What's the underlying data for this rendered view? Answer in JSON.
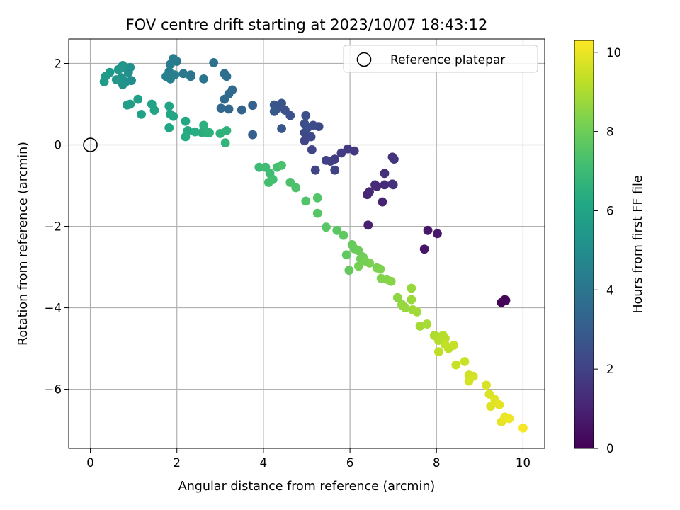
{
  "chart_data": {
    "type": "scatter",
    "title": "FOV centre drift starting at 2023/10/07 18:43:12",
    "xlabel": "Angular distance from reference (arcmin)",
    "ylabel": "Rotation from reference (arcmin)",
    "xlim": [
      -0.5,
      10.5
    ],
    "ylim": [
      -7.45,
      2.6
    ],
    "xticks": [
      0,
      2,
      4,
      6,
      8,
      10
    ],
    "yticks": [
      2,
      0,
      -2,
      -4,
      -6
    ],
    "grid": true,
    "legend": {
      "placement": "top-right",
      "entries": [
        "Reference platepar"
      ]
    },
    "reference_point": {
      "x": 0,
      "y": 0,
      "label": "Reference platepar"
    },
    "colorbar": {
      "label": "Hours from first FF file",
      "range": [
        0,
        10.3
      ],
      "ticks": [
        0,
        2,
        4,
        6,
        8,
        10
      ],
      "colormap": "viridis"
    },
    "points": [
      [
        9.5,
        -3.87,
        0.1
      ],
      [
        9.6,
        -3.82,
        0.2
      ],
      [
        9.58,
        -3.8,
        0.15
      ],
      [
        7.72,
        -2.56,
        0.6
      ],
      [
        7.8,
        -2.1,
        0.65
      ],
      [
        8.02,
        -2.18,
        0.7
      ],
      [
        6.42,
        -1.97,
        0.9
      ],
      [
        6.75,
        -1.4,
        1.0
      ],
      [
        6.4,
        -1.22,
        1.1
      ],
      [
        6.45,
        -1.15,
        1.15
      ],
      [
        6.62,
        -1.02,
        1.2
      ],
      [
        6.58,
        -0.98,
        1.25
      ],
      [
        6.8,
        -0.98,
        1.3
      ],
      [
        6.98,
        -0.96,
        1.35
      ],
      [
        6.8,
        -0.7,
        1.4
      ],
      [
        7.0,
        -0.98,
        1.45
      ],
      [
        6.98,
        -0.3,
        1.5
      ],
      [
        7.02,
        -0.35,
        1.55
      ],
      [
        6.1,
        -0.15,
        1.7
      ],
      [
        5.95,
        -0.1,
        1.75
      ],
      [
        5.8,
        -0.2,
        1.8
      ],
      [
        5.65,
        -0.35,
        1.85
      ],
      [
        5.55,
        -0.4,
        1.9
      ],
      [
        5.45,
        -0.38,
        1.95
      ],
      [
        5.65,
        -0.62,
        2.0
      ],
      [
        5.2,
        -0.62,
        2.05
      ],
      [
        5.12,
        -0.12,
        2.1
      ],
      [
        4.95,
        0.1,
        2.15
      ],
      [
        5.1,
        0.2,
        2.2
      ],
      [
        5.28,
        0.45,
        2.25
      ],
      [
        4.95,
        0.3,
        2.3
      ],
      [
        5.15,
        0.48,
        2.35
      ],
      [
        4.95,
        0.52,
        2.4
      ],
      [
        5.02,
        0.42,
        2.45
      ],
      [
        4.98,
        0.72,
        2.5
      ],
      [
        4.62,
        0.72,
        2.55
      ],
      [
        4.5,
        0.85,
        2.6
      ],
      [
        4.42,
        1.02,
        2.65
      ],
      [
        4.3,
        0.88,
        2.7
      ],
      [
        4.25,
        0.98,
        2.75
      ],
      [
        4.42,
        0.4,
        2.8
      ],
      [
        4.25,
        0.82,
        2.85
      ],
      [
        3.75,
        0.25,
        3.1
      ],
      [
        3.75,
        0.97,
        3.2
      ],
      [
        3.5,
        0.86,
        3.3
      ],
      [
        3.2,
        0.88,
        3.4
      ],
      [
        3.02,
        0.9,
        3.45
      ],
      [
        3.1,
        1.12,
        3.5
      ],
      [
        3.2,
        1.25,
        3.55
      ],
      [
        3.28,
        1.35,
        3.6
      ],
      [
        3.15,
        1.68,
        3.7
      ],
      [
        3.1,
        1.75,
        3.75
      ],
      [
        2.85,
        2.02,
        3.85
      ],
      [
        2.62,
        1.62,
        3.95
      ],
      [
        2.32,
        1.68,
        4.0
      ],
      [
        2.32,
        1.72,
        4.05
      ],
      [
        2.15,
        1.75,
        4.1
      ],
      [
        2.0,
        2.05,
        4.2
      ],
      [
        1.92,
        2.12,
        4.25
      ],
      [
        1.85,
        1.98,
        4.3
      ],
      [
        1.82,
        1.8,
        4.35
      ],
      [
        1.95,
        1.72,
        4.4
      ],
      [
        1.75,
        1.68,
        4.45
      ],
      [
        1.85,
        1.62,
        4.5
      ],
      [
        0.95,
        1.58,
        5.0
      ],
      [
        0.92,
        1.9,
        5.05
      ],
      [
        0.88,
        1.78,
        5.1
      ],
      [
        0.82,
        1.55,
        5.15
      ],
      [
        0.75,
        1.48,
        5.2
      ],
      [
        0.72,
        1.65,
        5.25
      ],
      [
        0.7,
        1.88,
        5.3
      ],
      [
        0.75,
        1.95,
        5.35
      ],
      [
        0.65,
        1.85,
        5.4
      ],
      [
        0.6,
        1.6,
        5.45
      ],
      [
        0.45,
        1.78,
        5.5
      ],
      [
        0.35,
        1.68,
        5.55
      ],
      [
        0.32,
        1.55,
        5.6
      ],
      [
        0.85,
        0.98,
        5.7
      ],
      [
        0.92,
        1.0,
        5.75
      ],
      [
        1.1,
        1.12,
        5.8
      ],
      [
        1.18,
        0.75,
        5.85
      ],
      [
        1.42,
        1.0,
        5.9
      ],
      [
        1.48,
        0.85,
        5.95
      ],
      [
        1.82,
        0.95,
        6.0
      ],
      [
        1.85,
        0.75,
        6.05
      ],
      [
        1.92,
        0.7,
        6.1
      ],
      [
        1.82,
        0.42,
        6.15
      ],
      [
        2.2,
        0.58,
        6.2
      ],
      [
        2.25,
        0.35,
        6.25
      ],
      [
        2.2,
        0.2,
        6.3
      ],
      [
        2.42,
        0.32,
        6.35
      ],
      [
        2.58,
        0.3,
        6.4
      ],
      [
        2.7,
        0.3,
        6.45
      ],
      [
        2.62,
        0.48,
        6.5
      ],
      [
        2.75,
        0.3,
        6.55
      ],
      [
        3.0,
        0.28,
        6.6
      ],
      [
        3.15,
        0.35,
        6.65
      ],
      [
        3.12,
        0.05,
        6.7
      ],
      [
        3.9,
        -0.55,
        7.0
      ],
      [
        4.05,
        -0.55,
        7.05
      ],
      [
        4.15,
        -0.7,
        7.1
      ],
      [
        4.22,
        -0.85,
        7.15
      ],
      [
        4.12,
        -0.92,
        7.2
      ],
      [
        4.32,
        -0.55,
        7.25
      ],
      [
        4.42,
        -0.5,
        7.3
      ],
      [
        4.62,
        -0.92,
        7.35
      ],
      [
        4.75,
        -1.05,
        7.4
      ],
      [
        4.98,
        -1.38,
        7.45
      ],
      [
        5.25,
        -1.3,
        7.5
      ],
      [
        5.25,
        -1.68,
        7.55
      ],
      [
        5.45,
        -2.02,
        7.6
      ],
      [
        5.7,
        -2.1,
        7.65
      ],
      [
        5.85,
        -2.22,
        7.7
      ],
      [
        5.92,
        -2.7,
        7.75
      ],
      [
        5.98,
        -3.08,
        7.8
      ],
      [
        6.05,
        -2.45,
        7.85
      ],
      [
        6.1,
        -2.55,
        7.9
      ],
      [
        6.2,
        -2.6,
        7.95
      ],
      [
        6.25,
        -2.8,
        8.0
      ],
      [
        6.3,
        -2.75,
        8.05
      ],
      [
        6.35,
        -2.85,
        8.1
      ],
      [
        6.2,
        -2.98,
        8.15
      ],
      [
        6.45,
        -2.9,
        8.2
      ],
      [
        6.62,
        -3.02,
        8.25
      ],
      [
        6.7,
        -3.05,
        8.3
      ],
      [
        6.72,
        -3.28,
        8.35
      ],
      [
        6.85,
        -3.3,
        8.4
      ],
      [
        6.95,
        -3.35,
        8.45
      ],
      [
        7.1,
        -3.75,
        8.55
      ],
      [
        7.2,
        -3.92,
        8.6
      ],
      [
        7.22,
        -3.95,
        8.65
      ],
      [
        7.28,
        -4.0,
        8.7
      ],
      [
        7.42,
        -3.52,
        8.72
      ],
      [
        7.42,
        -3.8,
        8.75
      ],
      [
        7.45,
        -4.05,
        8.8
      ],
      [
        7.55,
        -4.1,
        8.85
      ],
      [
        7.62,
        -4.45,
        8.9
      ],
      [
        7.78,
        -4.4,
        8.95
      ],
      [
        7.95,
        -4.68,
        9.0
      ],
      [
        8.0,
        -4.7,
        9.05
      ],
      [
        8.05,
        -4.8,
        9.1
      ],
      [
        8.15,
        -4.68,
        9.15
      ],
      [
        8.2,
        -4.75,
        9.2
      ],
      [
        8.28,
        -5.0,
        9.25
      ],
      [
        8.05,
        -5.08,
        9.3
      ],
      [
        8.2,
        -4.9,
        9.35
      ],
      [
        8.4,
        -4.92,
        9.4
      ],
      [
        8.45,
        -5.4,
        9.45
      ],
      [
        8.65,
        -5.32,
        9.5
      ],
      [
        8.75,
        -5.65,
        9.55
      ],
      [
        8.85,
        -5.68,
        9.6
      ],
      [
        8.75,
        -5.8,
        9.65
      ],
      [
        9.15,
        -5.9,
        9.7
      ],
      [
        9.22,
        -6.12,
        9.75
      ],
      [
        9.25,
        -6.42,
        9.8
      ],
      [
        9.35,
        -6.25,
        9.85
      ],
      [
        9.45,
        -6.38,
        9.9
      ],
      [
        9.5,
        -6.8,
        9.95
      ],
      [
        9.58,
        -6.68,
        10.0
      ],
      [
        9.68,
        -6.72,
        10.05
      ],
      [
        10.0,
        -6.95,
        10.2
      ]
    ]
  }
}
